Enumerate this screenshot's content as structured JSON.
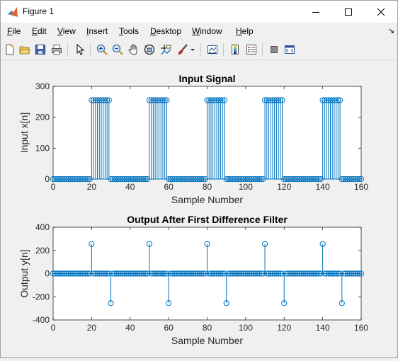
{
  "window": {
    "title": "Figure 1",
    "minimize_glyph": "—",
    "maximize_glyph": "☐",
    "close_glyph": "✕"
  },
  "menu": {
    "items": [
      {
        "key": "F",
        "rest": "ile"
      },
      {
        "key": "E",
        "rest": "dit"
      },
      {
        "key": "V",
        "rest": "iew"
      },
      {
        "key": "I",
        "rest": "nsert"
      },
      {
        "key": "T",
        "rest": "ools"
      },
      {
        "key": "D",
        "rest": "esktop"
      },
      {
        "key": "W",
        "rest": "indow"
      },
      {
        "key": "H",
        "rest": "elp"
      }
    ],
    "dock_glyph": "↘"
  },
  "toolbar": {
    "icons": [
      "new-figure-icon",
      "open-file-icon",
      "save-icon",
      "print-icon",
      "edit-plot-arrow-icon",
      "zoom-in-icon",
      "zoom-out-icon",
      "pan-hand-icon",
      "rotate-3d-icon",
      "data-cursor-icon",
      "brush-icon",
      "brush-dropdown-icon",
      "link-plot-icon",
      "insert-colorbar-icon",
      "insert-legend-icon",
      "hide-plot-tools-icon",
      "show-plot-tools-icon"
    ]
  },
  "chart_data": [
    {
      "type": "stem",
      "title": "Input Signal",
      "xlabel": "Sample Number",
      "ylabel": "Input x[n]",
      "xlim": [
        0,
        160
      ],
      "ylim": [
        0,
        300
      ],
      "xticks": [
        0,
        20,
        40,
        60,
        80,
        100,
        120,
        140,
        160
      ],
      "yticks": [
        0,
        100,
        200,
        300
      ],
      "n_start": 0,
      "n_end": 160,
      "high_value": 255,
      "low_value": 0,
      "high_ranges": [
        [
          20,
          29
        ],
        [
          50,
          59
        ],
        [
          80,
          89
        ],
        [
          110,
          119
        ],
        [
          140,
          149
        ]
      ],
      "color": "#0072bd",
      "grid": false
    },
    {
      "type": "stem",
      "title": "Output After First Difference Filter",
      "xlabel": "Sample Number",
      "ylabel": "Output y[n]",
      "xlim": [
        0,
        160
      ],
      "ylim": [
        -400,
        400
      ],
      "xticks": [
        0,
        20,
        40,
        60,
        80,
        100,
        120,
        140,
        160
      ],
      "yticks": [
        -400,
        -200,
        0,
        200,
        400
      ],
      "n_start": 0,
      "n_end": 160,
      "spikes": [
        {
          "x": 20,
          "y": 255
        },
        {
          "x": 30,
          "y": -255
        },
        {
          "x": 50,
          "y": 255
        },
        {
          "x": 60,
          "y": -255
        },
        {
          "x": 80,
          "y": 255
        },
        {
          "x": 90,
          "y": -255
        },
        {
          "x": 110,
          "y": 255
        },
        {
          "x": 120,
          "y": -255
        },
        {
          "x": 140,
          "y": 255
        },
        {
          "x": 150,
          "y": -255
        }
      ],
      "color": "#0072bd",
      "grid": false
    }
  ]
}
